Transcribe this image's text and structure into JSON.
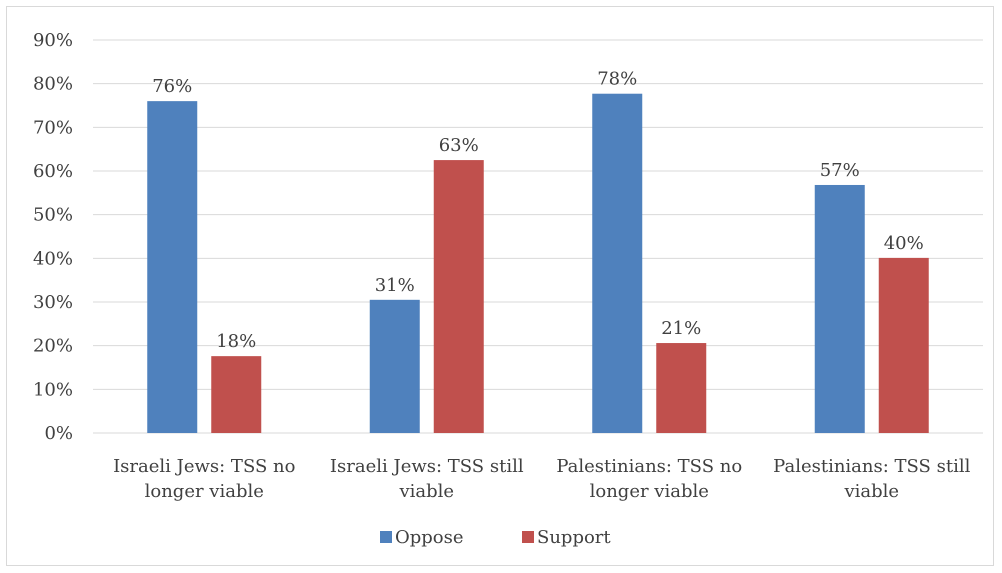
{
  "chart_data": {
    "type": "bar",
    "title": "",
    "xlabel": "",
    "ylabel": "",
    "ylim": [
      0,
      90
    ],
    "y_ticks": [
      0,
      10,
      20,
      30,
      40,
      50,
      60,
      70,
      80,
      90
    ],
    "y_tick_format": "percent",
    "grid": true,
    "legend_position": "bottom",
    "categories": [
      [
        "Israeli Jews: TSS no",
        "longer viable"
      ],
      [
        "Israeli Jews: TSS still",
        "viable"
      ],
      [
        "Palestinians: TSS no",
        "longer viable"
      ],
      [
        "Palestinians: TSS still",
        "viable"
      ]
    ],
    "series": [
      {
        "name": "Oppose",
        "color": "#4f81bd",
        "values": [
          76,
          30.5,
          77.7,
          56.8
        ],
        "labels": [
          "76%",
          "31%",
          "78%",
          "57%"
        ]
      },
      {
        "name": "Support",
        "color": "#c0504d",
        "values": [
          17.6,
          62.5,
          20.6,
          40.1
        ],
        "labels": [
          "18%",
          "63%",
          "21%",
          "40%"
        ]
      }
    ]
  }
}
